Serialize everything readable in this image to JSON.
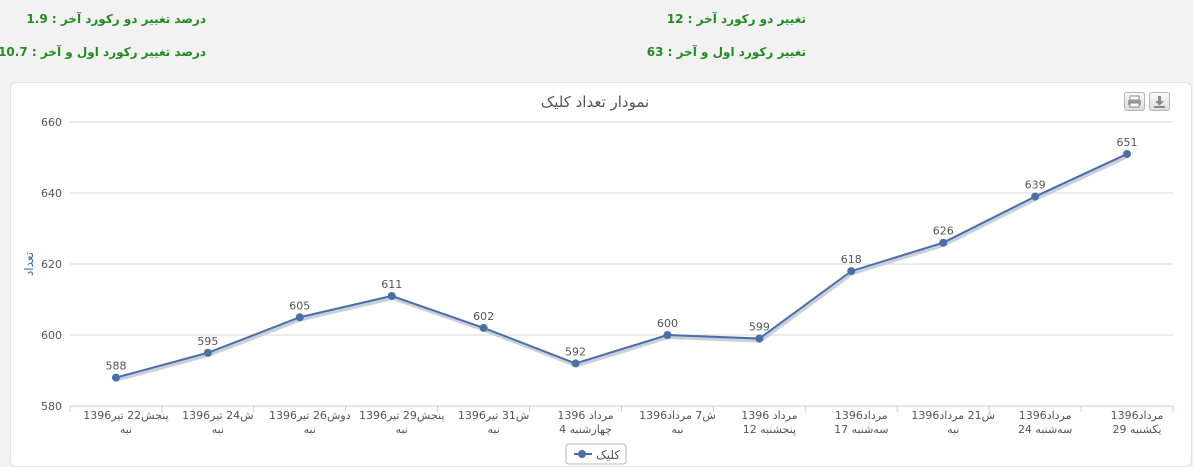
{
  "stats": {
    "change_last_two_pct": "درصد تغییر دو رکورد آخر : 1.9",
    "change_last_two": "تغییر دو رکورد آخر : 12",
    "change_first_last_pct": "درصد تغییر رکورد اول و آخر : 10.7",
    "change_first_last": "تغییر رکورد اول و آخر : 63"
  },
  "toolbar": {
    "print_icon": "printer-icon",
    "export_icon": "download-icon"
  },
  "chart_data": {
    "type": "line",
    "title": "نمودار تعداد کلیک",
    "xlabel": "",
    "ylabel": "تعداد",
    "ylim": [
      580,
      660
    ],
    "yticks": [
      580,
      600,
      620,
      640,
      660
    ],
    "grid": true,
    "legend_position": "bottom-center",
    "categories": [
      [
        "پنجش22 تیر1396",
        "نبه"
      ],
      [
        "ش24 تیر1396",
        "نبه"
      ],
      [
        "دوش26 تیر1396",
        "نبه"
      ],
      [
        "پنجش29 تیر1396",
        "نبه"
      ],
      [
        "ش31 تیر1396",
        "نبه"
      ],
      [
        "مرداد 1396",
        "چهارشنبه 4"
      ],
      [
        "ش7 مرداد1396",
        "نبه"
      ],
      [
        "مرداد 1396",
        "پنجشنبه 12"
      ],
      [
        "مرداد1396",
        "سه‌شنبه 17"
      ],
      [
        "ش21 مرداد1396",
        "نبه"
      ],
      [
        "مرداد1396",
        "سه‌شنبه 24"
      ],
      [
        "مرداد1396",
        "یکشنبه 29"
      ]
    ],
    "series": [
      {
        "name": "کلیک",
        "color": "#4a6fa5",
        "values": [
          588,
          595,
          605,
          611,
          602,
          592,
          600,
          599,
          618,
          626,
          639,
          651
        ]
      }
    ]
  }
}
